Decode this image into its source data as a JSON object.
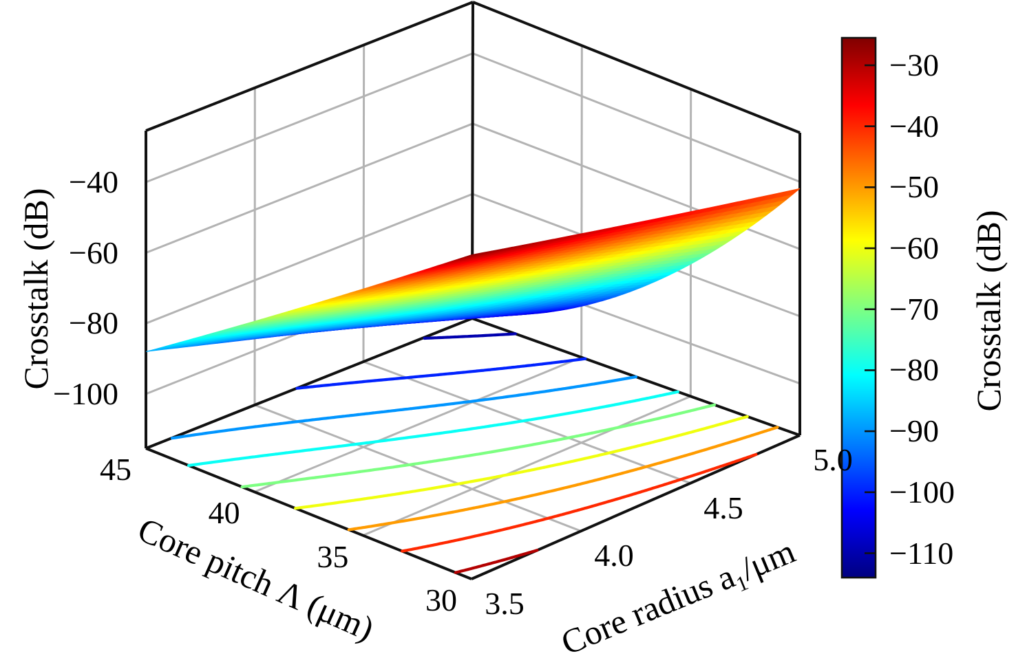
{
  "chart_data": {
    "type": "surface3d",
    "title": "",
    "pitch_axis": {
      "label": "Core pitch Λ (μm)",
      "range": [
        30,
        45
      ],
      "ticks": [
        45,
        40,
        35,
        30
      ],
      "tick_labels": [
        "45",
        "40",
        "35",
        "30"
      ]
    },
    "radius_axis": {
      "label_prefix": "Core radius a",
      "label_sub": "1",
      "label_suffix": "/μm",
      "range": [
        3.5,
        5.0
      ],
      "ticks": [
        3.5,
        4.0,
        4.5,
        5.0
      ],
      "tick_labels": [
        "3.5",
        "4.0",
        "4.5",
        "5.0"
      ]
    },
    "z_axis": {
      "label": "Crosstalk (dB)",
      "range": [
        -115.4,
        -25.4
      ],
      "ticks": [
        -40,
        -60,
        -80,
        -100
      ],
      "tick_labels": [
        "−40",
        "−60",
        "−80",
        "−100"
      ]
    },
    "colorbar": {
      "label": "Crosstalk (dB)",
      "colormap": "jet",
      "clim": [
        -114,
        -25.5
      ],
      "ticks": [
        -30,
        -40,
        -50,
        -60,
        -70,
        -80,
        -90,
        -100,
        -110
      ],
      "tick_labels": [
        "−30",
        "−40",
        "−50",
        "−60",
        "−70",
        "−80",
        "−90",
        "−100",
        "−110"
      ]
    },
    "surface": {
      "description": "Crosstalk z(p,r) in dB for core pitch p (30-45 um) and core radius r (3.5-5.0 um); z = (1-b)*(z_p30_r35 + s35*(p-30)) + b*(z_p30_r50 + c1*(p-30) + c2*(p-30)^2), with b=(r-3.5)/1.5",
      "corner_values": {
        "p30_r35": -27,
        "p45_r35": -88,
        "p30_r50": -42,
        "p45_r50": -114
      },
      "r35_edge_slope": -4.0667,
      "r50_edge_coeffs": {
        "c1": -8,
        "c2": 0.2133
      }
    },
    "floor_contours": {
      "levels": [
        -110,
        -100,
        -90,
        -80,
        -70,
        -60,
        -50,
        -40,
        -30
      ]
    },
    "wall_grids": {
      "z_gridlines": [
        -100,
        -80,
        -60,
        -40
      ],
      "pitch_gridlines": [
        40,
        35
      ],
      "radius_gridlines": [
        4.0,
        4.5
      ]
    }
  }
}
